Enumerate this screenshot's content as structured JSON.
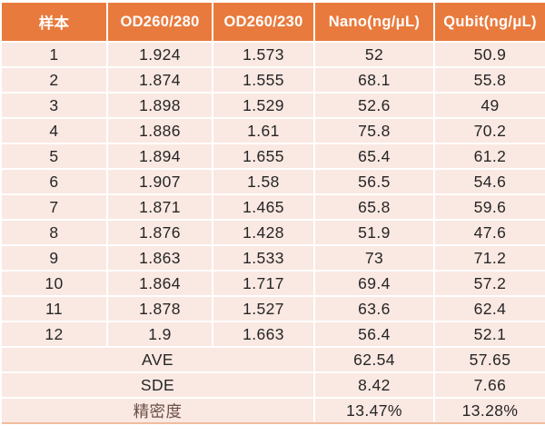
{
  "chart_data": {
    "type": "table",
    "columns": [
      "样本",
      "OD260/280",
      "OD260/230",
      "Nano(ng/μL)",
      "Qubit(ng/μL)"
    ],
    "rows": [
      [
        "1",
        "1.924",
        "1.573",
        "52",
        "50.9"
      ],
      [
        "2",
        "1.874",
        "1.555",
        "68.1",
        "55.8"
      ],
      [
        "3",
        "1.898",
        "1.529",
        "52.6",
        "49"
      ],
      [
        "4",
        "1.886",
        "1.61",
        "75.8",
        "70.2"
      ],
      [
        "5",
        "1.894",
        "1.655",
        "65.4",
        "61.2"
      ],
      [
        "6",
        "1.907",
        "1.58",
        "56.5",
        "54.6"
      ],
      [
        "7",
        "1.871",
        "1.465",
        "65.8",
        "59.6"
      ],
      [
        "8",
        "1.876",
        "1.428",
        "51.9",
        "47.6"
      ],
      [
        "9",
        "1.863",
        "1.533",
        "73",
        "71.2"
      ],
      [
        "10",
        "1.864",
        "1.717",
        "69.4",
        "57.2"
      ],
      [
        "11",
        "1.878",
        "1.527",
        "63.6",
        "62.4"
      ],
      [
        "12",
        "1.9",
        "1.663",
        "56.4",
        "52.1"
      ]
    ],
    "summary": [
      [
        "AVE",
        "62.54",
        "57.65"
      ],
      [
        "SDE",
        "8.42",
        "7.66"
      ],
      [
        "精密度",
        "13.47%",
        "13.28%"
      ]
    ],
    "layout": {
      "summary_label_colspan": 3,
      "grid": true,
      "banded": false
    }
  },
  "colors": {
    "header_bg": "#E97A3D",
    "header_text": "#FFFFFF",
    "row_bg": "#FAE8E2",
    "grid_line": "#FFFFFF",
    "body_text": "#262626",
    "precision_label_text": "#6B4F47",
    "table_bottom_edge": "#F0BD9E",
    "page_bg": "#FFFFFF"
  }
}
